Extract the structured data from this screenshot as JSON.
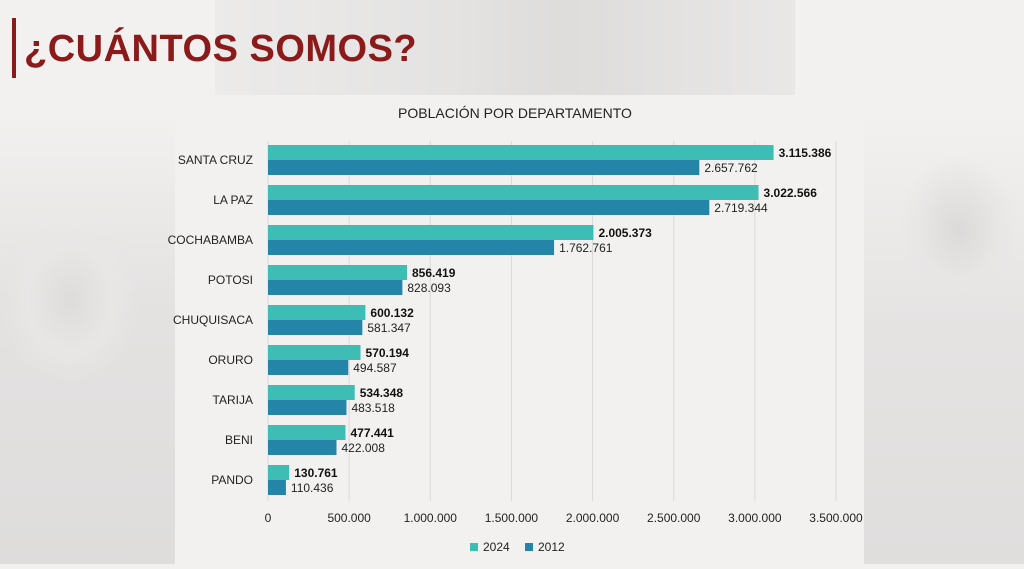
{
  "header": {
    "title": "¿CUÁNTOS SOMOS?"
  },
  "colors": {
    "series_2024": "#3dbdb4",
    "series_2012": "#2585a8",
    "title": "#8b1a1a",
    "grid": "#d9d9d9"
  },
  "chart_data": {
    "type": "bar",
    "orientation": "horizontal",
    "title": "POBLACIÓN POR DEPARTAMENTO",
    "categories": [
      "SANTA CRUZ",
      "LA PAZ",
      "COCHABAMBA",
      "POTOSI",
      "CHUQUISACA",
      "ORURO",
      "TARIJA",
      "BENI",
      "PANDO"
    ],
    "series": [
      {
        "name": "2024",
        "values": [
          3115386,
          3022566,
          2005373,
          856419,
          600132,
          570194,
          534348,
          477441,
          130761
        ],
        "labels": [
          "3.115.386",
          "3.022.566",
          "2.005.373",
          "856.419",
          "600.132",
          "570.194",
          "534.348",
          "477.441",
          "130.761"
        ]
      },
      {
        "name": "2012",
        "values": [
          2657762,
          2719344,
          1762761,
          828093,
          581347,
          494587,
          483518,
          422008,
          110436
        ],
        "labels": [
          "2.657.762",
          "2.719.344",
          "1.762.761",
          "828.093",
          "581.347",
          "494.587",
          "483.518",
          "422.008",
          "110.436"
        ]
      }
    ],
    "xlim": [
      0,
      3500000
    ],
    "xticks": [
      0,
      500000,
      1000000,
      1500000,
      2000000,
      2500000,
      3000000,
      3500000
    ],
    "xtick_labels": [
      "0",
      "500.000",
      "1.000.000",
      "1.500.000",
      "2.000.000",
      "2.500.000",
      "3.000.000",
      "3.500.000"
    ],
    "grid": true,
    "legend_position": "bottom"
  }
}
